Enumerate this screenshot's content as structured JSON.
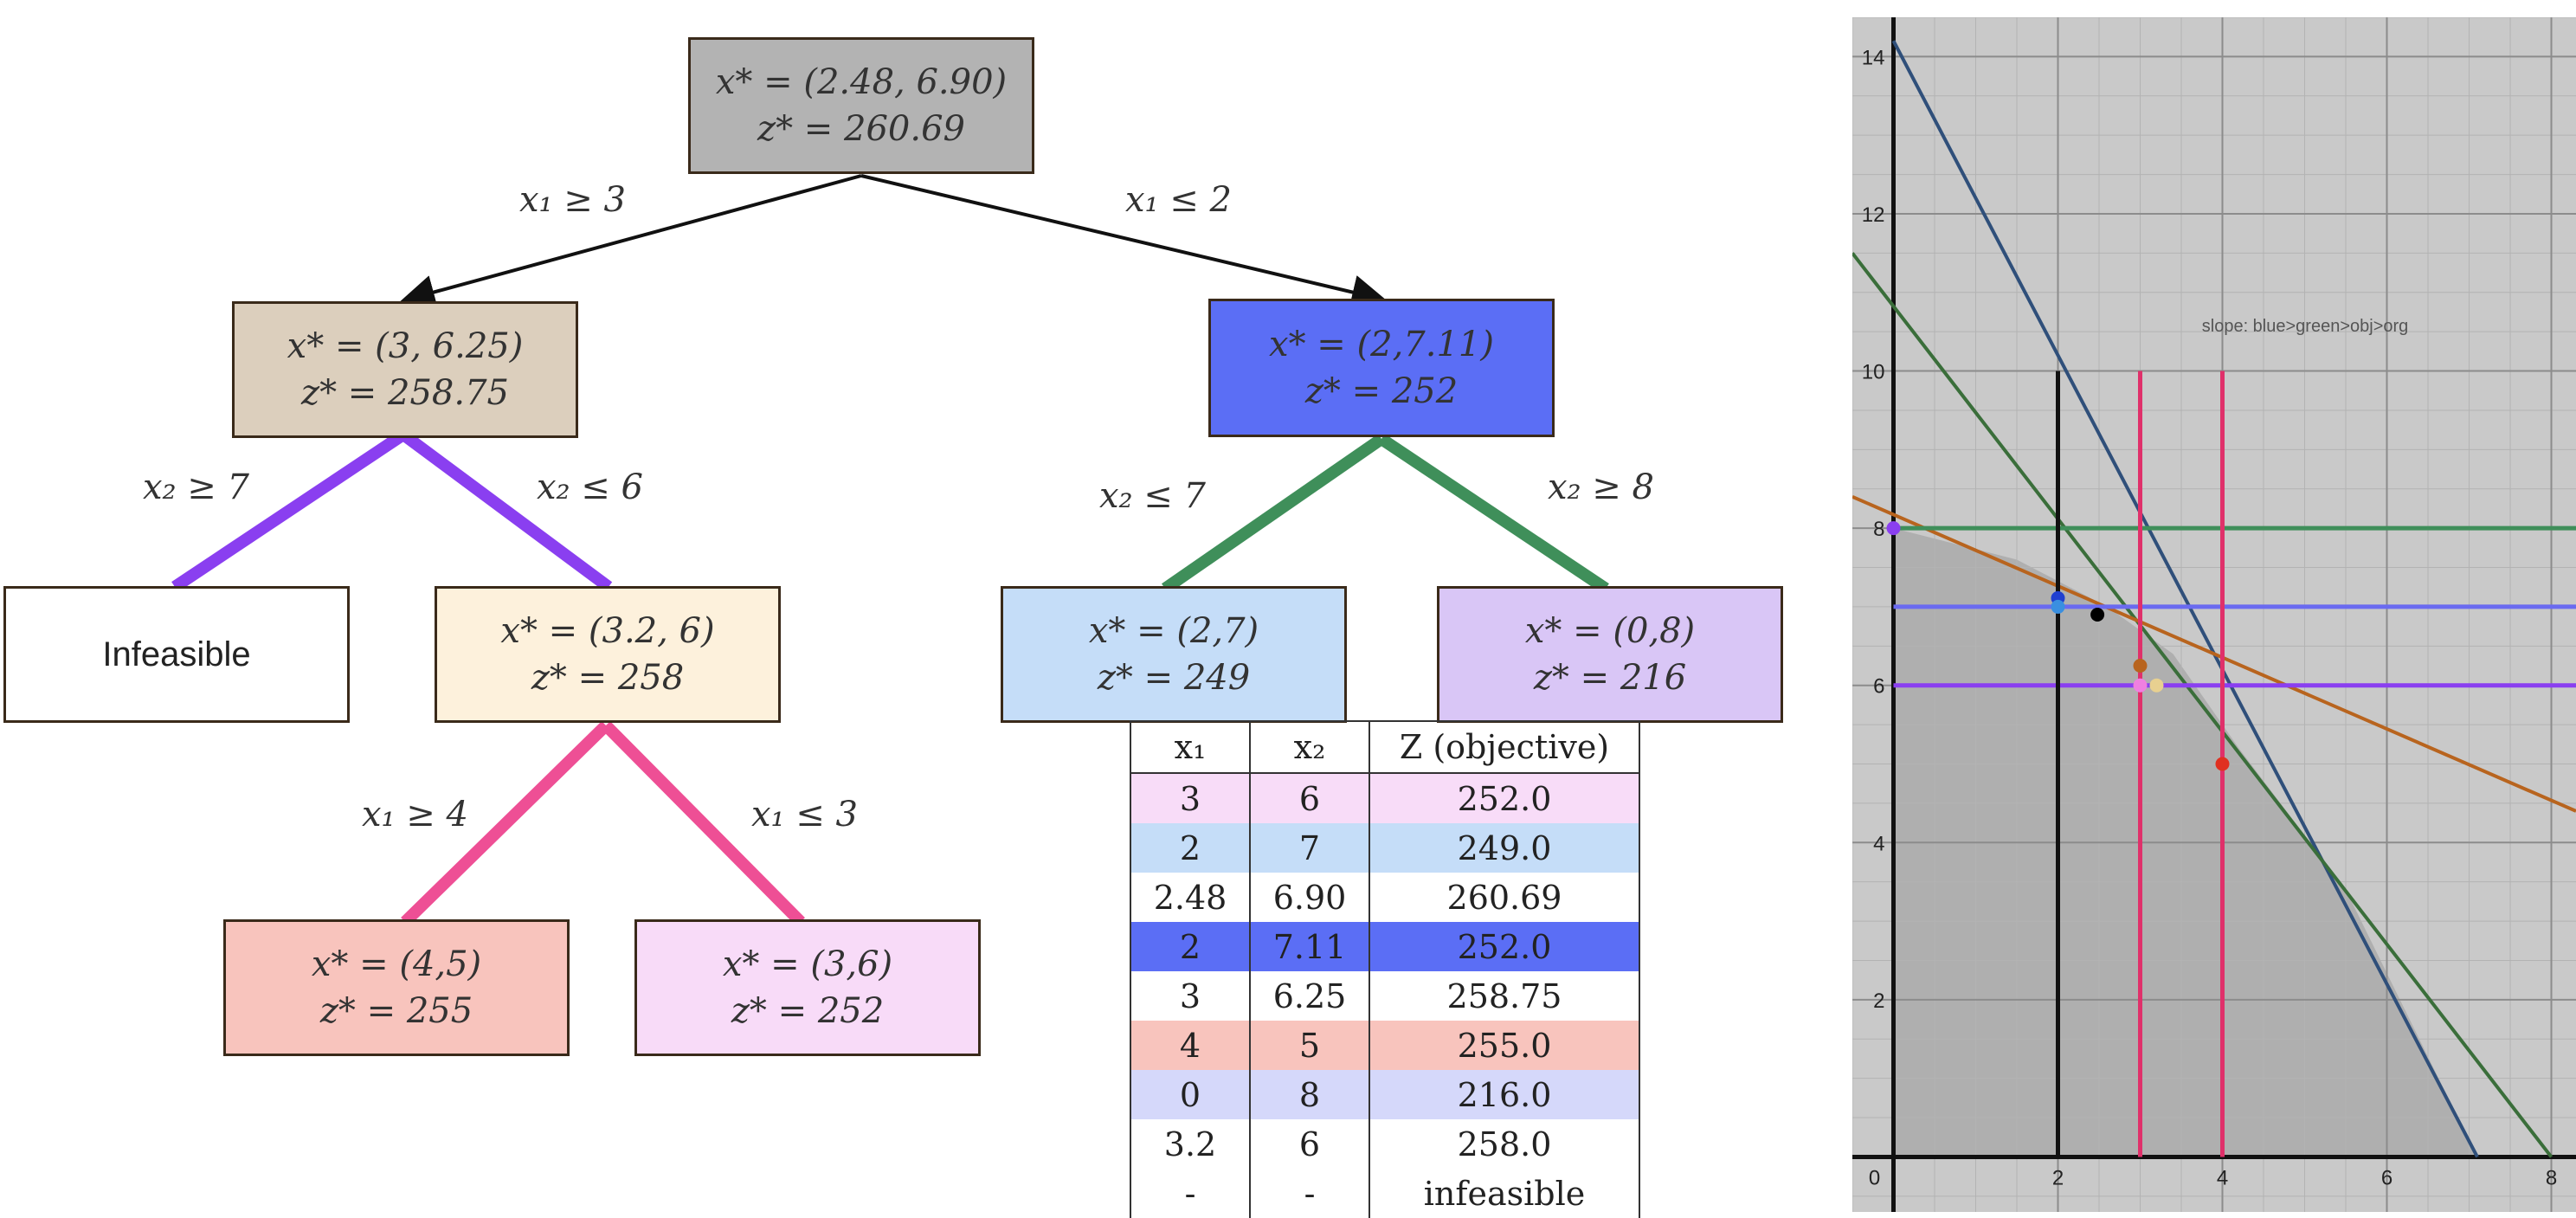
{
  "tree": {
    "nodes": [
      {
        "id": "root",
        "line1": "x* = (2.48, 6.90)",
        "line2": "z* = 260.69",
        "color": "#b3b3b3"
      },
      {
        "id": "n1",
        "line1": "x* = (3, 6.25)",
        "line2": "z* = 258.75",
        "color": "#dccfbd"
      },
      {
        "id": "n2",
        "line1": "x* = (2,7.11)",
        "line2": "z* = 252",
        "color": "#5b6ef5"
      },
      {
        "id": "n3",
        "line1": "Infeasible",
        "line2": "",
        "color": "#ffffff"
      },
      {
        "id": "n4",
        "line1": "x* = (3.2, 6)",
        "line2": "z* = 258",
        "color": "#fdf1dc"
      },
      {
        "id": "n5",
        "line1": "x* = (2,7)",
        "line2": "z* = 249",
        "color": "#c5ddf8"
      },
      {
        "id": "n6",
        "line1": "x* = (0,8)",
        "line2": "z* = 216",
        "color": "#d9c6f6"
      },
      {
        "id": "n7",
        "line1": "x* = (4,5)",
        "line2": "z* = 255",
        "color": "#f8c4bd"
      },
      {
        "id": "n8",
        "line1": "x* = (3,6)",
        "line2": "z* = 252",
        "color": "#f8dbf8"
      }
    ],
    "edges": [
      {
        "label": "x₁ ≥ 3",
        "color": "#111111"
      },
      {
        "label": "x₁ ≤ 2",
        "color": "#111111"
      },
      {
        "label": "x₂ ≥ 7",
        "color": "#8a3ff0"
      },
      {
        "label": "x₂ ≤ 6",
        "color": "#8a3ff0"
      },
      {
        "label": "x₂ ≤ 7",
        "color": "#3f8f5a"
      },
      {
        "label": "x₂ ≥ 8",
        "color": "#3f8f5a"
      },
      {
        "label": "x₁ ≥ 4",
        "color": "#ee4f95"
      },
      {
        "label": "x₁ ≤ 3",
        "color": "#ee4f95"
      }
    ]
  },
  "table": {
    "headers": [
      "x₁",
      "x₂",
      "Z (objective)"
    ],
    "rows": [
      {
        "cells": [
          "3",
          "6",
          "252.0"
        ],
        "color": "#f8dcf8"
      },
      {
        "cells": [
          "2",
          "7",
          "249.0"
        ],
        "color": "#c5ddf8"
      },
      {
        "cells": [
          "2.48",
          "6.90",
          "260.69"
        ],
        "color": "#ffffff"
      },
      {
        "cells": [
          "2",
          "7.11",
          "252.0"
        ],
        "color": "#5b6ef5"
      },
      {
        "cells": [
          "3",
          "6.25",
          "258.75"
        ],
        "color": "#ffffff"
      },
      {
        "cells": [
          "4",
          "5",
          "255.0"
        ],
        "color": "#f8c4bd"
      },
      {
        "cells": [
          "0",
          "8",
          "216.0"
        ],
        "color": "#d5d8fa"
      },
      {
        "cells": [
          "3.2",
          "6",
          "258.0"
        ],
        "color": "#ffffff"
      },
      {
        "cells": [
          "-",
          "-",
          "infeasible"
        ],
        "color": "#ffffff"
      }
    ]
  },
  "graph": {
    "annotation": "slope: blue>green>obj>org",
    "x_ticks": [
      "0",
      "2",
      "4",
      "6",
      "8"
    ],
    "y_ticks": [
      "2",
      "4",
      "6",
      "8",
      "10",
      "12",
      "14"
    ],
    "xlim": [
      -0.5,
      8.3
    ],
    "ylim": [
      -0.7,
      14.5
    ],
    "lines": [
      {
        "name": "blue",
        "color": "#2f4f7a",
        "p1": [
          0,
          14.2
        ],
        "p2": [
          7.1,
          0
        ]
      },
      {
        "name": "green",
        "color": "#3a6e3a",
        "p1": [
          -0.5,
          11.5
        ],
        "p2": [
          8,
          0
        ]
      },
      {
        "name": "org",
        "color": "#b8641e",
        "p1": [
          -0.5,
          8.4
        ],
        "p2": [
          8.3,
          4.4
        ]
      }
    ],
    "hlines": [
      {
        "y": 8,
        "x0": 0,
        "color": "#3f8f5a"
      },
      {
        "y": 7,
        "x0": 0,
        "color": "#6a6af0"
      },
      {
        "y": 6,
        "x0": 0,
        "color": "#8a3ff0"
      }
    ],
    "vlines": [
      {
        "x": 2,
        "y1": 10,
        "color": "#111111"
      },
      {
        "x": 3,
        "y1": 10,
        "color": "#e0306a"
      },
      {
        "x": 4,
        "y1": 10,
        "color": "#e0306a"
      }
    ],
    "points": [
      {
        "x": 0,
        "y": 8,
        "color": "#8a3ff0"
      },
      {
        "x": 2,
        "y": 7.11,
        "color": "#1f3fd0"
      },
      {
        "x": 2,
        "y": 7,
        "color": "#3a8fe0"
      },
      {
        "x": 2.48,
        "y": 6.9,
        "color": "#000000"
      },
      {
        "x": 3,
        "y": 6.25,
        "color": "#b8641e"
      },
      {
        "x": 3,
        "y": 6,
        "color": "#f080e0"
      },
      {
        "x": 3.2,
        "y": 6,
        "color": "#e8d090"
      },
      {
        "x": 4,
        "y": 5,
        "color": "#e03020"
      }
    ]
  }
}
